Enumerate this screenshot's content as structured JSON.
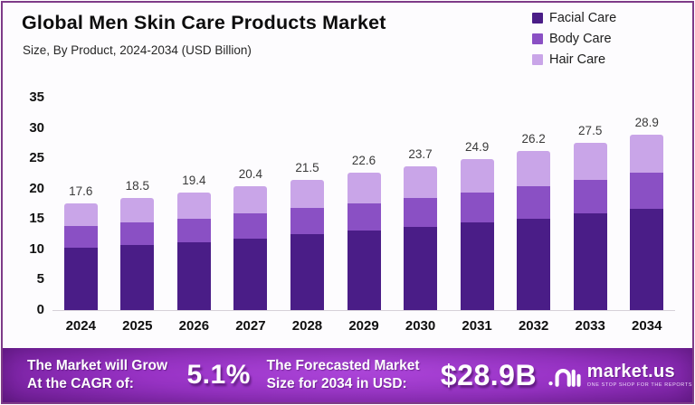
{
  "header": {
    "title": "Global Men Skin Care Products Market",
    "subtitle": "Size, By Product, 2024-2034 (USD Billion)"
  },
  "legend": [
    {
      "label": "Facial Care",
      "color": "#4a1d87"
    },
    {
      "label": "Body Care",
      "color": "#8a50c4"
    },
    {
      "label": "Hair Care",
      "color": "#c9a5e8"
    }
  ],
  "chart_data": {
    "type": "bar",
    "stacked": true,
    "title": "Global Men Skin Care Products Market",
    "subtitle": "Size, By Product, 2024-2034 (USD Billion)",
    "xlabel": "",
    "ylabel": "USD Billion",
    "ylim": [
      0,
      35
    ],
    "yticks": [
      0,
      5,
      10,
      15,
      20,
      25,
      30,
      35
    ],
    "grid": false,
    "legend_position": "top-right",
    "categories": [
      "2024",
      "2025",
      "2026",
      "2027",
      "2028",
      "2029",
      "2030",
      "2031",
      "2032",
      "2033",
      "2034"
    ],
    "series": [
      {
        "name": "Facial Care",
        "color": "#4a1d87",
        "values": [
          10.3,
          10.7,
          11.2,
          11.8,
          12.5,
          13.1,
          13.7,
          14.4,
          15.1,
          15.9,
          16.7
        ]
      },
      {
        "name": "Body Care",
        "color": "#8a50c4",
        "values": [
          3.5,
          3.7,
          3.9,
          4.1,
          4.3,
          4.5,
          4.7,
          5.0,
          5.3,
          5.6,
          5.9
        ]
      },
      {
        "name": "Hair Care",
        "color": "#c9a5e8",
        "values": [
          3.8,
          4.1,
          4.3,
          4.5,
          4.7,
          5.0,
          5.3,
          5.5,
          5.8,
          6.0,
          6.3
        ]
      }
    ],
    "totals": [
      17.6,
      18.5,
      19.4,
      20.4,
      21.5,
      22.6,
      23.7,
      24.9,
      26.2,
      27.5,
      28.9
    ]
  },
  "banner": {
    "cagr_label_line1": "The Market will Grow",
    "cagr_label_line2": "At the CAGR of:",
    "cagr_value": "5.1%",
    "forecast_label_line1": "The Forecasted Market",
    "forecast_label_line2": "Size for 2034 in USD:",
    "forecast_value": "$28.9B",
    "brand_name": "market.us",
    "brand_tagline": "ONE STOP SHOP FOR THE REPORTS"
  }
}
